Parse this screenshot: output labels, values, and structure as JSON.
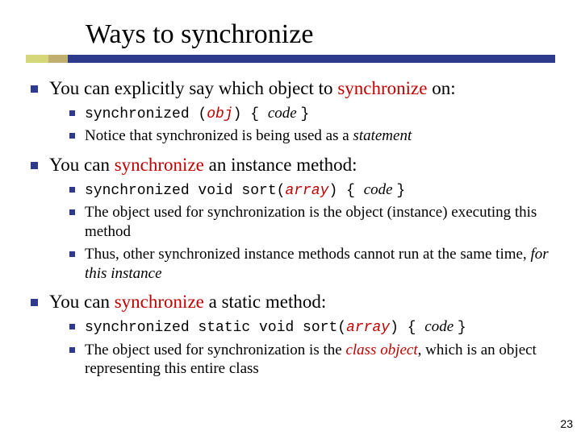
{
  "title": "Ways to synchronize",
  "page_number": "23",
  "colors": {
    "bullet": "#2e3a8c",
    "underline_yellow": "#d6d67a",
    "underline_tan": "#c0b070",
    "underline_blue": "#2e3a8c",
    "red": "#c00000",
    "bg": "#ffffff"
  },
  "font_sizes": {
    "title": 34,
    "level1": 23,
    "level2": 19,
    "mono_l2": 18,
    "pagenum": 14
  },
  "b1": {
    "pre": "You can explicitly say which object to ",
    "red": "synchronize",
    "post": " on:",
    "s1": {
      "kw": "synchronized ",
      "paren_open": "(",
      "obj": "obj",
      "paren_close": ") ",
      "brace_open": "{ ",
      "code": "code ",
      "brace_close": "}"
    },
    "s2": {
      "pre": "Notice that synchronized is being used as a ",
      "ital": "statement"
    }
  },
  "b2": {
    "pre": "You can ",
    "red": "synchronize",
    "post": " an instance method:",
    "s1": {
      "kw": "synchronized void sort(",
      "arr": "array",
      "close": ") ",
      "brace_open": "{ ",
      "code": "code ",
      "brace_close": "}"
    },
    "s2": "The object used for synchronization is the object (instance) executing this method",
    "s3": {
      "pre": "Thus, other synchronized instance methods cannot run at the same time, ",
      "ital": "for this instance"
    }
  },
  "b3": {
    "pre": "You can ",
    "red": "synchronize",
    "post": " a static method:",
    "s1": {
      "kw": "synchronized static void sort(",
      "arr": "array",
      "close": ") ",
      "brace_open": "{ ",
      "code": "code ",
      "brace_close": "}"
    },
    "s2": {
      "pre": "The object used for synchronization is the ",
      "red": "class object",
      "post": ", which is an object representing this entire class"
    }
  }
}
